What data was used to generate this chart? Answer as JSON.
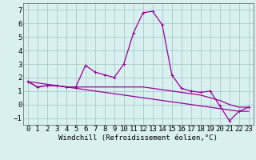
{
  "xlabel": "Windchill (Refroidissement éolien,°C)",
  "x_hours": [
    0,
    1,
    2,
    3,
    4,
    5,
    6,
    7,
    8,
    9,
    10,
    11,
    12,
    13,
    14,
    15,
    16,
    17,
    18,
    19,
    20,
    21,
    22,
    23
  ],
  "line1": [
    1.7,
    1.3,
    1.4,
    1.4,
    1.3,
    1.3,
    2.9,
    2.4,
    2.2,
    2.0,
    3.0,
    5.3,
    6.8,
    6.9,
    5.9,
    2.2,
    1.2,
    1.0,
    0.9,
    1.0,
    -0.1,
    -1.2,
    -0.5,
    -0.2
  ],
  "line2": [
    1.7,
    1.3,
    1.4,
    1.4,
    1.3,
    1.3,
    1.3,
    1.3,
    1.3,
    1.3,
    1.3,
    1.3,
    1.3,
    1.2,
    1.1,
    1.0,
    0.9,
    0.8,
    0.7,
    0.5,
    0.3,
    0.0,
    -0.2,
    -0.2
  ],
  "line3": [
    1.7,
    1.6,
    1.5,
    1.4,
    1.3,
    1.2,
    1.1,
    1.0,
    0.9,
    0.8,
    0.7,
    0.6,
    0.5,
    0.4,
    0.3,
    0.2,
    0.1,
    0.0,
    -0.1,
    -0.2,
    -0.3,
    -0.4,
    -0.5,
    -0.5
  ],
  "line_color": "#990099",
  "bg_color": "#d8f0f0",
  "grid_color": "#aacccc",
  "ylim": [
    -1.5,
    7.5
  ],
  "yticks": [
    -1,
    0,
    1,
    2,
    3,
    4,
    5,
    6,
    7
  ],
  "xticks": [
    0,
    1,
    2,
    3,
    4,
    5,
    6,
    7,
    8,
    9,
    10,
    11,
    12,
    13,
    14,
    15,
    16,
    17,
    18,
    19,
    20,
    21,
    22,
    23
  ],
  "tick_fontsize": 6.5,
  "xlabel_fontsize": 6.5
}
